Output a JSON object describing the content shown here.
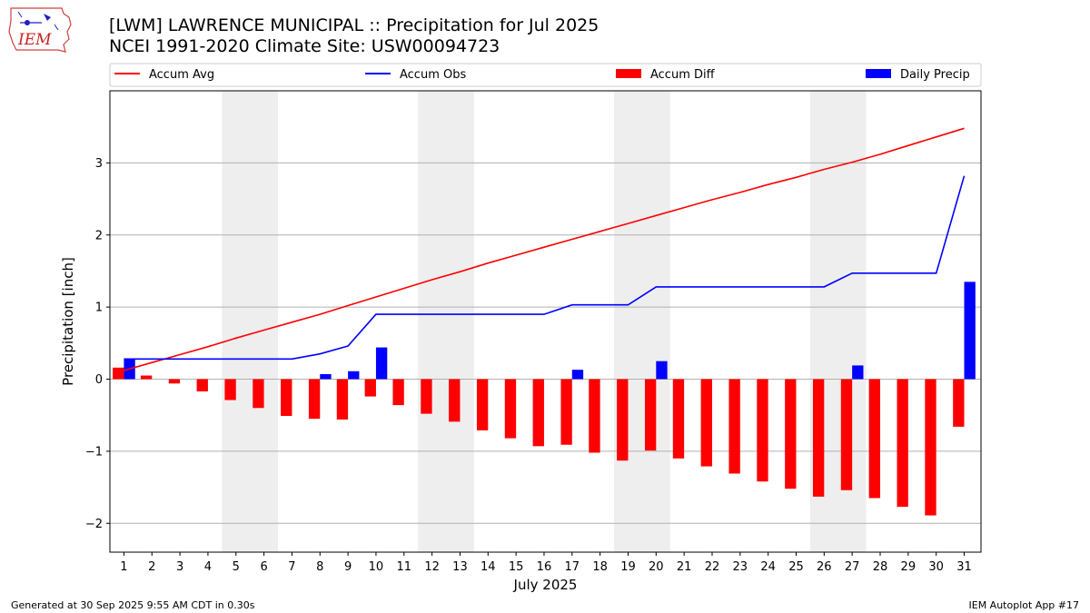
{
  "header": {
    "title_line1": "[LWM] LAWRENCE MUNICIPAL :: Precipitation for Jul 2025",
    "title_line2": "NCEI 1991-2020 Climate Site: USW00094723",
    "logo_text": "IEM"
  },
  "footer": {
    "generated": "Generated at 30 Sep 2025 9:55 AM CDT in 0.30s",
    "app": "IEM Autoplot App #17"
  },
  "colors": {
    "accum_avg": "#ff0000",
    "accum_obs": "#0000ff",
    "accum_diff": "#ff0000",
    "daily_precip": "#0000ff",
    "weekend_shade": "#eeeeee",
    "grid": "#b0b0b0"
  },
  "chart_data": {
    "type": "bar",
    "title": "[LWM] LAWRENCE MUNICIPAL :: Precipitation for Jul 2025",
    "subtitle": "NCEI 1991-2020 Climate Site: USW00094723",
    "xlabel": "July 2025",
    "ylabel": "Precipitation [inch]",
    "ylim": [
      -2.4,
      4.0
    ],
    "yticks": [
      -2,
      -1,
      0,
      1,
      2,
      3
    ],
    "ytick_labels": [
      "−2",
      "−1",
      "0",
      "1",
      "2",
      "3"
    ],
    "xlim": [
      0.5,
      31.6
    ],
    "categories": [
      "1",
      "2",
      "3",
      "4",
      "5",
      "6",
      "7",
      "8",
      "9",
      "10",
      "11",
      "12",
      "13",
      "14",
      "15",
      "16",
      "17",
      "18",
      "19",
      "20",
      "21",
      "22",
      "23",
      "24",
      "25",
      "26",
      "27",
      "28",
      "29",
      "30",
      "31"
    ],
    "grid": "horizontal",
    "legend_position": "top",
    "weekend_shading": [
      [
        5,
        6
      ],
      [
        12,
        13
      ],
      [
        19,
        20
      ],
      [
        26,
        27
      ]
    ],
    "series": [
      {
        "name": "Accum Avg",
        "kind": "line",
        "values": [
          0.12,
          0.23,
          0.34,
          0.45,
          0.57,
          0.68,
          0.79,
          0.9,
          1.02,
          1.14,
          1.26,
          1.38,
          1.49,
          1.61,
          1.72,
          1.83,
          1.94,
          2.05,
          2.16,
          2.27,
          2.38,
          2.49,
          2.59,
          2.7,
          2.8,
          2.91,
          3.01,
          3.12,
          3.24,
          3.36,
          3.48
        ]
      },
      {
        "name": "Accum Obs",
        "kind": "line",
        "values": [
          0.28,
          0.28,
          0.28,
          0.28,
          0.28,
          0.28,
          0.28,
          0.35,
          0.46,
          0.9,
          0.9,
          0.9,
          0.9,
          0.9,
          0.9,
          0.9,
          1.03,
          1.03,
          1.03,
          1.28,
          1.28,
          1.28,
          1.28,
          1.28,
          1.28,
          1.28,
          1.47,
          1.47,
          1.47,
          1.47,
          2.82
        ]
      },
      {
        "name": "Accum Diff",
        "kind": "bar",
        "values": [
          0.16,
          0.05,
          -0.06,
          -0.17,
          -0.29,
          -0.4,
          -0.51,
          -0.55,
          -0.56,
          -0.24,
          -0.36,
          -0.48,
          -0.59,
          -0.71,
          -0.82,
          -0.93,
          -0.91,
          -1.02,
          -1.13,
          -0.99,
          -1.1,
          -1.21,
          -1.31,
          -1.42,
          -1.52,
          -1.63,
          -1.54,
          -1.65,
          -1.77,
          -1.89,
          -0.66
        ]
      },
      {
        "name": "Daily Precip",
        "kind": "bar",
        "values": [
          0.28,
          0.0,
          0.0,
          0.0,
          0.0,
          0.0,
          0.0,
          0.07,
          0.11,
          0.44,
          0.0,
          0.0,
          0.0,
          0.0,
          0.0,
          0.0,
          0.13,
          0.0,
          0.0,
          0.25,
          0.0,
          0.0,
          0.0,
          0.0,
          0.0,
          0.0,
          0.19,
          0.0,
          0.0,
          0.0,
          1.35
        ]
      }
    ]
  }
}
